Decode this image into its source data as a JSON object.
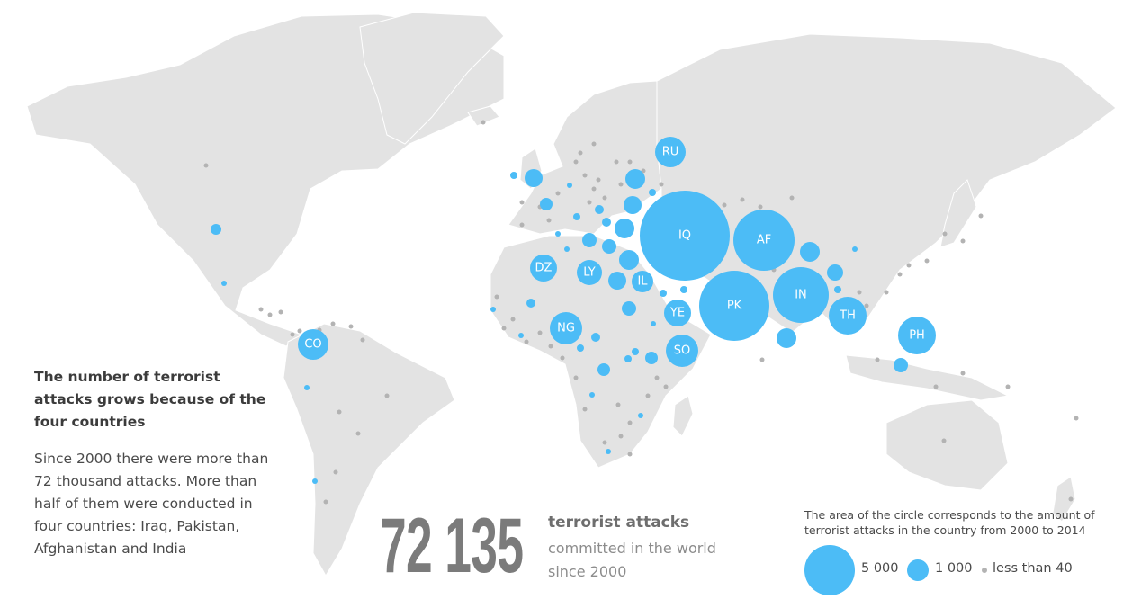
{
  "headline": {
    "title": "The number of terrorist attacks grows because of the four countries",
    "body": "Since 2000 there were more than 72 thousand attacks. More than half of them were conducted in four countries: Iraq, Pakistan, Afghanistan and India"
  },
  "stat": {
    "number": "72 135",
    "label": "terrorist attacks",
    "sub": "committed in the world since 2000"
  },
  "legend": {
    "caption": "The area of the circle corresponds to the amount of terrorist attacks in the country from 2000 to 2014",
    "items": [
      {
        "label": "5 000",
        "value": 5000
      },
      {
        "label": "1 000",
        "value": 1000
      },
      {
        "label": "less than 40",
        "value": 40
      }
    ]
  },
  "colors": {
    "bubble": "#4cbcf6",
    "minor_dot": "#b3b3b3",
    "land": "#e3e3e3"
  },
  "labeled_countries": [
    "IQ",
    "AF",
    "PK",
    "IN",
    "TH",
    "PH",
    "RU",
    "DZ",
    "LY",
    "IL",
    "YE",
    "SO",
    "NG",
    "CO"
  ]
}
